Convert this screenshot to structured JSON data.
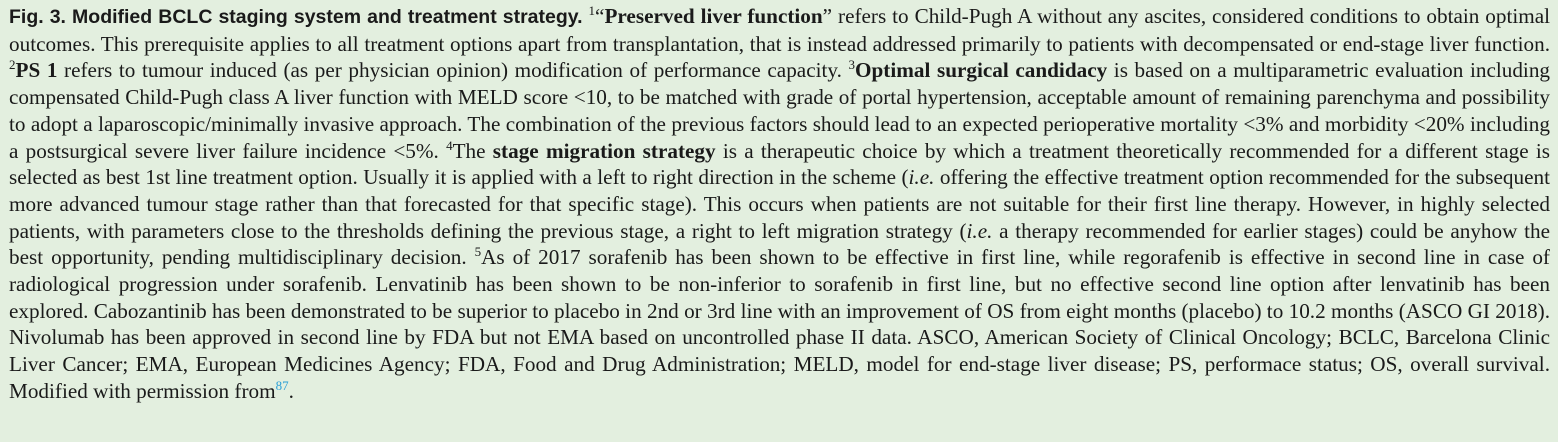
{
  "caption": {
    "title": "Fig. 3.  Modified BCLC staging system and treatment strategy.",
    "n1": "1",
    "t1a": "“",
    "b1": "Preserved liver function",
    "t1b": "” refers to Child-Pugh A without any ascites, considered conditions to obtain optimal outcomes. This prerequisite applies to all treatment options apart from transplantation, that is instead addressed primarily to patients with decompensated or end-stage liver function. ",
    "n2": "2",
    "b2": "PS 1",
    "t2": " refers to tumour induced (as per physician opinion) modification of performance capacity. ",
    "n3": "3",
    "b3": "Optimal surgical candidacy",
    "t3": " is based on a multiparametric evaluation including compensated Child-Pugh class A liver function with MELD score <10, to be matched with grade of portal hypertension, acceptable amount of remaining parenchyma and possibility to adopt a laparoscopic/minimally invasive approach. The combination of the previous factors should lead to an expected perioperative mortality <3% and morbidity <20% including a postsurgical severe liver failure incidence <5%. ",
    "n4": "4",
    "t4a": "The ",
    "b4": "stage migration strategy",
    "t4b": " is a therapeutic choice by which a treatment theoretically recommended for a different stage is selected as best 1st line treatment option. Usually it is applied with a left to right direction in the scheme (",
    "i4a": "i.e.",
    "t4c": " offering the effective treatment option recommended for the subsequent more advanced tumour stage rather than that forecasted for that specific stage). This occurs when patients are not suitable for their first line therapy. However, in highly selected patients, with parameters close to the thresholds defining the previous stage, a right to left migration strategy (",
    "i4b": "i.e.",
    "t4d": " a therapy recommended for earlier stages) could be anyhow the best opportunity, pending multidisciplinary decision. ",
    "n5": "5",
    "t5": "As of 2017 sorafenib has been shown to be effective in first line, while regorafenib is effective in second line in case of radiological progression under sorafenib. Lenvatinib has been shown to be non-inferior to sorafenib in first line, but no effective second line option after lenvatinib has been explored. Cabozantinib has been demonstrated to be superior to placebo in 2nd or 3rd line with an improvement of OS from eight months (placebo) to 10.2 months (ASCO GI 2018). Nivolumab has been approved in second line by FDA but not EMA based on uncontrolled phase II data. ASCO, American Society of Clinical Oncology; BCLC, Barcelona Clinic Liver Cancer; EMA, European Medicines Agency; FDA, Food and Drug Administration; MELD, model for end-stage liver disease; PS, performace status; OS, overall survival. Modified with permission from",
    "ref": "87",
    "end": "."
  },
  "colors": {
    "background": "#e3efdf",
    "text": "#1a1a1a",
    "reference_link": "#2a9fd6"
  }
}
